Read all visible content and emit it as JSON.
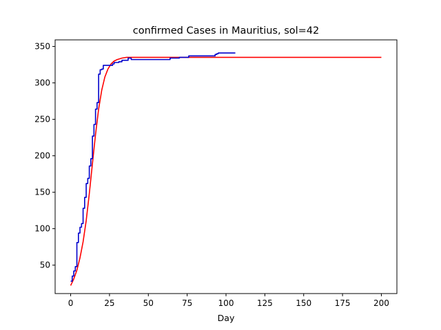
{
  "chart_data": {
    "type": "line",
    "title": "confirmed Cases in Mauritius, sol=42",
    "xlabel": "Day",
    "ylabel": "",
    "xlim": [
      -10,
      210
    ],
    "ylim": [
      11,
      359
    ],
    "xticks": [
      0,
      25,
      50,
      75,
      100,
      125,
      150,
      175,
      200
    ],
    "yticks": [
      50,
      100,
      150,
      200,
      250,
      300,
      350
    ],
    "grid": false,
    "legend": "none",
    "series": [
      {
        "color": "#ff0000",
        "style": "smooth",
        "x": [
          0,
          2,
          4,
          6,
          8,
          10,
          12,
          14,
          16,
          18,
          20,
          22,
          24,
          26,
          28,
          30,
          33,
          36,
          40,
          45,
          50,
          60,
          80,
          100,
          150,
          200
        ],
        "y": [
          22,
          31,
          43,
          60,
          82,
          111,
          148,
          189,
          229,
          264,
          290,
          308,
          319,
          326,
          330,
          332,
          334,
          335,
          335,
          335,
          335,
          335,
          335,
          335,
          335,
          335
        ]
      },
      {
        "color": "#0000cc",
        "style": "step",
        "x": [
          0,
          1,
          2,
          3,
          4,
          5,
          6,
          7,
          8,
          9,
          10,
          11,
          12,
          13,
          14,
          15,
          16,
          17,
          18,
          19,
          20,
          21,
          22,
          23,
          25,
          27,
          28,
          30,
          31,
          33,
          35,
          37,
          38,
          39,
          40,
          45,
          50,
          55,
          60,
          63,
          64,
          68,
          70,
          75,
          76,
          80,
          85,
          90,
          92,
          93,
          94,
          95,
          100,
          106
        ],
        "y": [
          28,
          35,
          42,
          48,
          81,
          94,
          102,
          107,
          128,
          143,
          162,
          169,
          186,
          196,
          227,
          243,
          264,
          273,
          312,
          318,
          319,
          324,
          324,
          324,
          324,
          326,
          328,
          328,
          329,
          331,
          331,
          334,
          334,
          332,
          332,
          332,
          332,
          332,
          332,
          332,
          334,
          334,
          335,
          335,
          337,
          337,
          337,
          337,
          337,
          339,
          340,
          341,
          341,
          341
        ]
      }
    ]
  }
}
